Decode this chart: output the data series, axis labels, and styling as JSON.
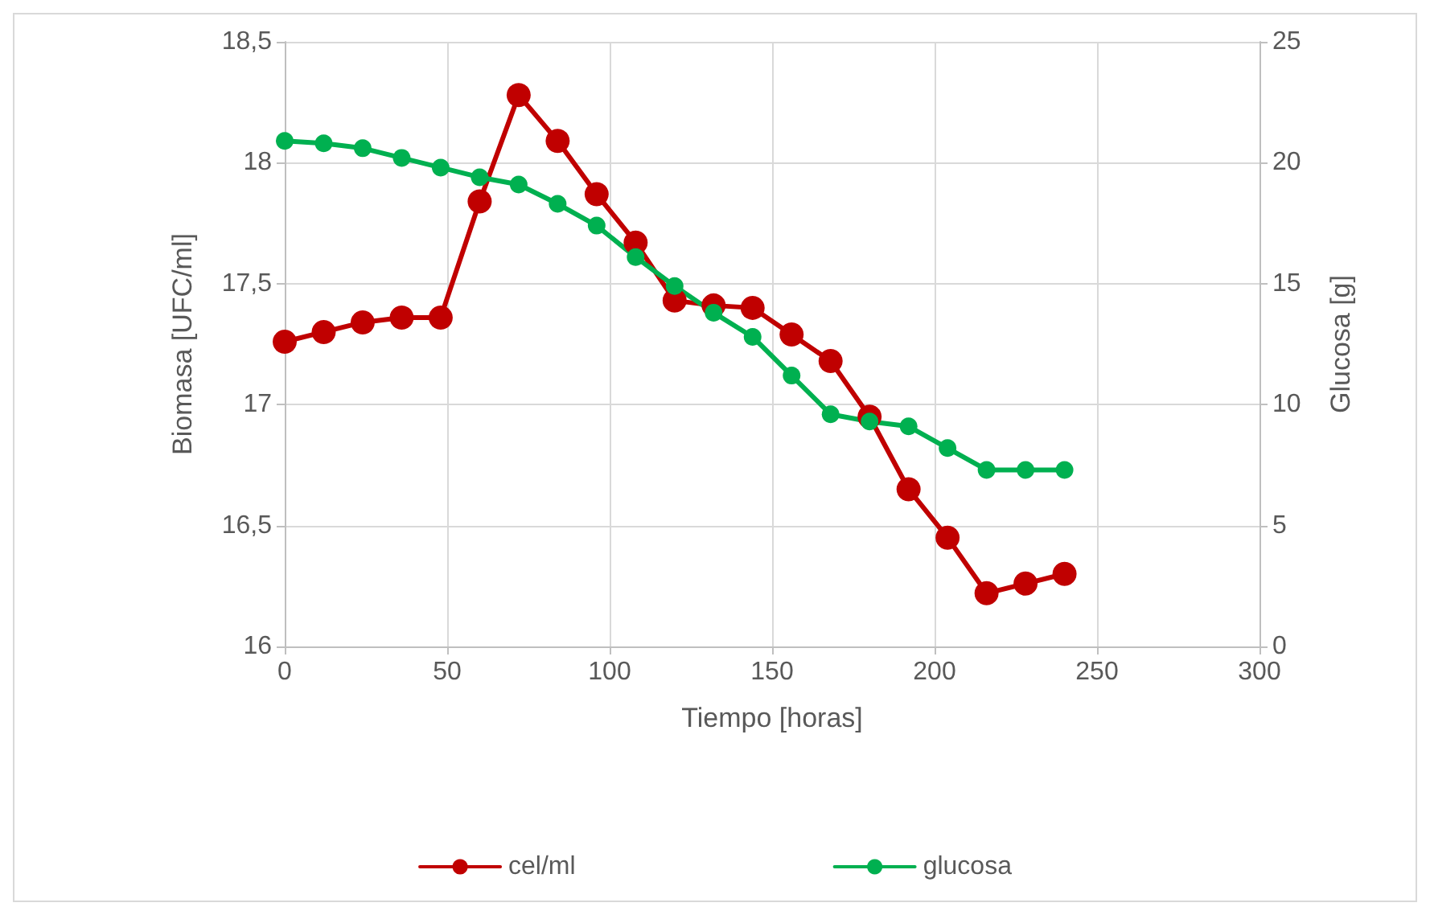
{
  "chart_data": {
    "type": "line",
    "xlabel": "Tiempo [horas]",
    "ylabel": "Biomasa [UFC/ml]",
    "y2label": "Glucosa [g]",
    "x": [
      0,
      12,
      24,
      36,
      48,
      60,
      72,
      84,
      96,
      108,
      120,
      132,
      144,
      156,
      168,
      180,
      192,
      204,
      216,
      228,
      240
    ],
    "series": [
      {
        "name": "cel/ml",
        "color": "#c00000",
        "values": [
          17.26,
          17.3,
          17.34,
          17.36,
          17.36,
          17.84,
          18.28,
          18.09,
          17.87,
          17.67,
          17.43,
          17.41,
          17.4,
          17.29,
          17.18,
          16.95,
          16.65,
          16.45,
          16.22,
          16.26,
          16.3
        ]
      },
      {
        "name": "glucosa",
        "color": "#00b050",
        "axis": "y2",
        "values": [
          20.9,
          20.8,
          20.6,
          20.2,
          19.8,
          19.4,
          19.1,
          18.3,
          17.4,
          16.1,
          14.9,
          13.8,
          12.8,
          11.2,
          9.6,
          9.3,
          9.1,
          8.2,
          7.3,
          7.3,
          7.3
        ]
      }
    ],
    "xlim": [
      0,
      300
    ],
    "xticks": [
      0,
      50,
      100,
      150,
      200,
      250,
      300
    ],
    "ylim": [
      16,
      18.5
    ],
    "yticks": [
      16,
      {
        "value": 16.5,
        "label": "16,5"
      },
      17,
      {
        "value": 17.5,
        "label": "17,5"
      },
      18,
      {
        "value": 18.5,
        "label": "18,5"
      }
    ],
    "y2lim": [
      0,
      25
    ],
    "y2ticks": [
      0,
      5,
      10,
      15,
      20,
      25
    ],
    "grid": true,
    "legend": "bottom",
    "marker": "circle",
    "line_style": "solid"
  }
}
